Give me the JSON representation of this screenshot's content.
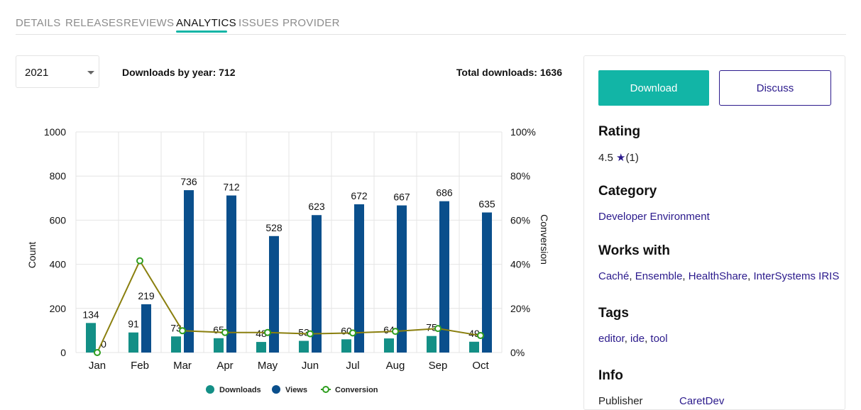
{
  "tabs": [
    {
      "label": "DETAILS",
      "active": false
    },
    {
      "label": "RELEASES",
      "active": false
    },
    {
      "label": "REVIEWS",
      "active": false
    },
    {
      "label": "ANALYTICS",
      "active": true
    },
    {
      "label": "ISSUES",
      "active": false
    },
    {
      "label": "PROVIDER",
      "active": false
    }
  ],
  "year_select": {
    "value": "2021"
  },
  "stats": {
    "downloads_by_year": "Downloads by year: 712",
    "total_downloads": "Total downloads: 1636"
  },
  "chart_data": {
    "type": "bar",
    "categories": [
      "Jan",
      "Feb",
      "Mar",
      "Apr",
      "May",
      "Jun",
      "Jul",
      "Aug",
      "Sep",
      "Oct"
    ],
    "series": [
      {
        "name": "Downloads",
        "type": "bar",
        "color": "#138f86",
        "axis": "left",
        "values": [
          134,
          91,
          73,
          65,
          48,
          53,
          60,
          64,
          75,
          49
        ]
      },
      {
        "name": "Views",
        "type": "bar",
        "color": "#0a4f8c",
        "axis": "left",
        "values": [
          0,
          219,
          736,
          712,
          528,
          623,
          672,
          667,
          686,
          635
        ]
      },
      {
        "name": "Conversion",
        "type": "line",
        "color": "#8a7f0e",
        "marker_color": "#2e9e1e",
        "axis": "right",
        "values": [
          0,
          41.6,
          9.9,
          9.1,
          9.1,
          8.5,
          8.9,
          9.6,
          10.9,
          7.7
        ]
      }
    ],
    "ylabel": "Count",
    "y2label": "Conversion",
    "ylim": [
      0,
      1000
    ],
    "yticks": [
      "0",
      "200",
      "400",
      "600",
      "800",
      "1000"
    ],
    "y2lim": [
      0,
      100
    ],
    "y2ticks": [
      "0%",
      "20%",
      "40%",
      "60%",
      "80%",
      "100%"
    ],
    "data_labels": {
      "downloads": [
        "134",
        "91",
        "73",
        "65",
        "48",
        "53",
        "60",
        "64",
        "75",
        "49"
      ],
      "views": [
        "0",
        "219",
        "736",
        "712",
        "528",
        "623",
        "672",
        "667",
        "686",
        "635"
      ]
    },
    "grid": true,
    "legend": "bottom-center"
  },
  "side": {
    "download_label": "Download",
    "discuss_label": "Discuss",
    "rating_title": "Rating",
    "rating_value": "4.5",
    "rating_star": "★",
    "rating_count": "(1)",
    "category_title": "Category",
    "category_link": "Developer Environment",
    "works_title": "Works with",
    "works": [
      "Caché",
      "Ensemble",
      "HealthShare",
      "InterSystems IRIS"
    ],
    "tags_title": "Tags",
    "tags": [
      "editor",
      "ide",
      "tool"
    ],
    "info_title": "Info",
    "publisher_label": "Publisher",
    "publisher_link": "CaretDev"
  }
}
